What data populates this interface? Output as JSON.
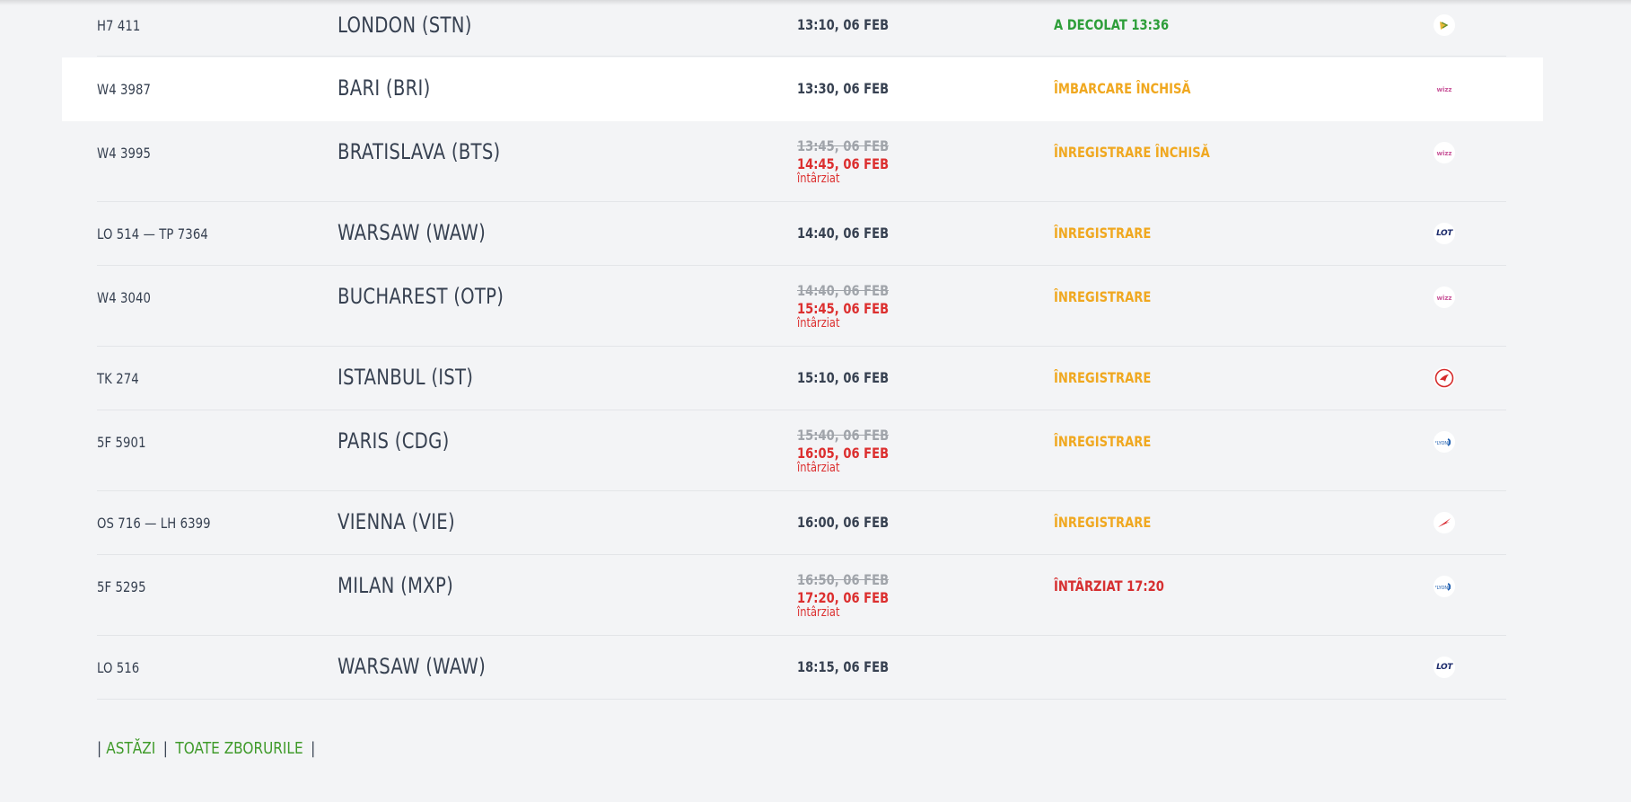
{
  "flights": [
    {
      "flight": "H7 411",
      "destination": "LONDON (STN)",
      "time": "13:10, 06 FEB",
      "status": "A DECOLAT 13:36",
      "status_color": "#2e9e3a",
      "airline_icon": "hisky-logo-icon"
    },
    {
      "flight": "W4 3987",
      "destination": "BARI (BRI)",
      "time": "13:30, 06 FEB",
      "status": "ÎMBARCARE ÎNCHISĂ",
      "status_color": "#f0a820",
      "airline_icon": "wizzair-logo-icon"
    },
    {
      "flight": "W4 3995",
      "destination": "BRATISLAVA (BTS)",
      "time_scheduled": "13:45, 06 FEB",
      "time_new": "14:45, 06 FEB",
      "delay_note": "întârziat",
      "status": "ÎNREGISTRARE ÎNCHISĂ",
      "status_color": "#f0a820",
      "airline_icon": "wizzair-logo-icon"
    },
    {
      "flight": "LO 514 — TP 7364",
      "destination": "WARSAW (WAW)",
      "time": "14:40, 06 FEB",
      "status": "ÎNREGISTRARE",
      "status_color": "#f0a820",
      "airline_icon": "lot-logo-icon",
      "logo_text": "LOT"
    },
    {
      "flight": "W4 3040",
      "destination": "BUCHAREST (OTP)",
      "time_scheduled": "14:40, 06 FEB",
      "time_new": "15:45, 06 FEB",
      "delay_note": "întârziat",
      "status": "ÎNREGISTRARE",
      "status_color": "#f0a820",
      "airline_icon": "wizzair-logo-icon"
    },
    {
      "flight": "TK 274",
      "destination": "ISTANBUL (IST)",
      "time": "15:10, 06 FEB",
      "status": "ÎNREGISTRARE",
      "status_color": "#f0a820",
      "airline_icon": "turkish-airlines-logo-icon"
    },
    {
      "flight": "5F 5901",
      "destination": "PARIS (CDG)",
      "time_scheduled": "15:40, 06 FEB",
      "time_new": "16:05, 06 FEB",
      "delay_note": "întârziat",
      "status": "ÎNREGISTRARE",
      "status_color": "#f0a820",
      "airline_icon": "flyone-logo-icon"
    },
    {
      "flight": "OS 716 — LH 6399",
      "destination": "VIENNA (VIE)",
      "time": "16:00, 06 FEB",
      "status": "ÎNREGISTRARE",
      "status_color": "#f0a820",
      "airline_icon": "austrian-logo-icon"
    },
    {
      "flight": "5F 5295",
      "destination": "MILAN (MXP)",
      "time_scheduled": "16:50, 06 FEB",
      "time_new": "17:20, 06 FEB",
      "delay_note": "întârziat",
      "status": "ÎNTÂRZIAT 17:20",
      "status_color": "#d63031",
      "airline_icon": "flyone-logo-icon"
    },
    {
      "flight": "LO 516",
      "destination": "WARSAW (WAW)",
      "time": "18:15, 06 FEB",
      "status": "",
      "status_color": "#f0a820",
      "airline_icon": "lot-logo-icon",
      "logo_text": "LOT"
    }
  ],
  "footer": {
    "link_today": "ASTĂZI",
    "link_all": "TOATE ZBORURILE",
    "separator": "|"
  },
  "colors": {
    "accent_green": "#3f9a2a",
    "delay_red": "#dc2f2f",
    "status_amber": "#f0a820"
  }
}
